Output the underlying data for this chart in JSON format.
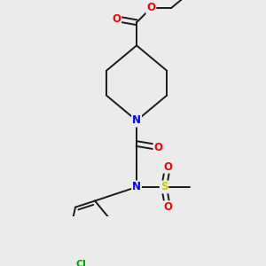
{
  "background_color": "#ebebeb",
  "bond_color": "#1a1a1a",
  "atom_colors": {
    "O": "#ff0000",
    "N": "#0000ff",
    "S": "#cccc00",
    "Cl": "#00aa00",
    "C": "#1a1a1a"
  },
  "figsize": [
    3.0,
    3.0
  ],
  "dpi": 100,
  "lw": 1.4,
  "fs": 7.5
}
